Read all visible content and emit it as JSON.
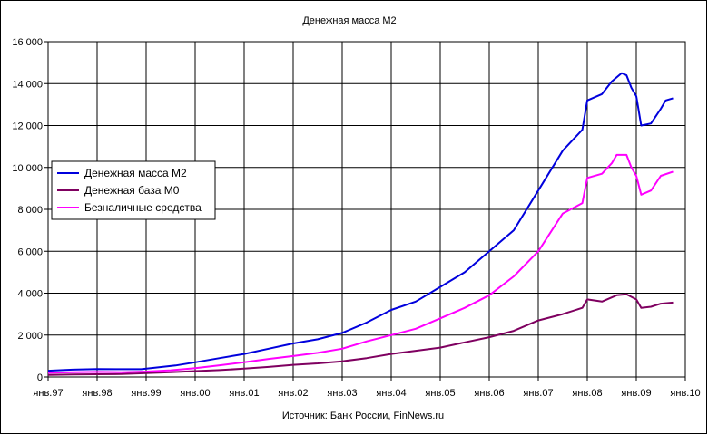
{
  "chart_data": {
    "type": "line",
    "title": "Денежная масса М2",
    "source": "Источник: Банк России, FinNews.ru",
    "xlabel": "",
    "ylabel": "",
    "x_ticks": [
      "янв.97",
      "янв.98",
      "янв.99",
      "янв.00",
      "янв.01",
      "янв.02",
      "янв.03",
      "янв.04",
      "янв.05",
      "янв.06",
      "янв.07",
      "янв.08",
      "янв.09",
      "янв.10"
    ],
    "xlim": [
      1997,
      2010
    ],
    "ylim": [
      0,
      16000
    ],
    "y_ticks": [
      "0",
      "2 000",
      "4 000",
      "6 000",
      "8 000",
      "10 000",
      "12 000",
      "14 000",
      "16 000"
    ],
    "y_tick_values": [
      0,
      2000,
      4000,
      6000,
      8000,
      10000,
      12000,
      14000,
      16000
    ],
    "grid": true,
    "legend_position": "left",
    "series": [
      {
        "name": "Денежная масса М2",
        "color": "#0000dd",
        "points": [
          [
            1997.0,
            300
          ],
          [
            1997.5,
            350
          ],
          [
            1998.0,
            380
          ],
          [
            1998.5,
            370
          ],
          [
            1998.9,
            370
          ],
          [
            1999.2,
            450
          ],
          [
            1999.6,
            550
          ],
          [
            2000.0,
            700
          ],
          [
            2000.5,
            900
          ],
          [
            2001.0,
            1100
          ],
          [
            2001.5,
            1350
          ],
          [
            2002.0,
            1600
          ],
          [
            2002.5,
            1800
          ],
          [
            2003.0,
            2100
          ],
          [
            2003.5,
            2600
          ],
          [
            2004.0,
            3200
          ],
          [
            2004.5,
            3600
          ],
          [
            2005.0,
            4300
          ],
          [
            2005.5,
            5000
          ],
          [
            2006.0,
            6000
          ],
          [
            2006.5,
            7000
          ],
          [
            2007.0,
            8900
          ],
          [
            2007.5,
            10800
          ],
          [
            2007.9,
            11800
          ],
          [
            2008.0,
            13200
          ],
          [
            2008.3,
            13500
          ],
          [
            2008.5,
            14100
          ],
          [
            2008.7,
            14500
          ],
          [
            2008.8,
            14400
          ],
          [
            2008.9,
            13800
          ],
          [
            2009.0,
            13400
          ],
          [
            2009.1,
            12000
          ],
          [
            2009.3,
            12100
          ],
          [
            2009.5,
            12800
          ],
          [
            2009.6,
            13200
          ],
          [
            2009.75,
            13300
          ]
        ]
      },
      {
        "name": "Денежная база М0",
        "color": "#7f0060",
        "points": [
          [
            1997.0,
            100
          ],
          [
            1997.5,
            120
          ],
          [
            1998.0,
            130
          ],
          [
            1998.5,
            140
          ],
          [
            1999.0,
            180
          ],
          [
            1999.5,
            230
          ],
          [
            2000.0,
            280
          ],
          [
            2000.5,
            330
          ],
          [
            2001.0,
            400
          ],
          [
            2001.5,
            480
          ],
          [
            2002.0,
            580
          ],
          [
            2002.5,
            650
          ],
          [
            2003.0,
            750
          ],
          [
            2003.5,
            900
          ],
          [
            2004.0,
            1100
          ],
          [
            2004.5,
            1250
          ],
          [
            2005.0,
            1400
          ],
          [
            2005.5,
            1650
          ],
          [
            2006.0,
            1900
          ],
          [
            2006.5,
            2200
          ],
          [
            2007.0,
            2700
          ],
          [
            2007.5,
            3000
          ],
          [
            2007.9,
            3300
          ],
          [
            2008.0,
            3700
          ],
          [
            2008.3,
            3600
          ],
          [
            2008.6,
            3900
          ],
          [
            2008.8,
            3950
          ],
          [
            2009.0,
            3700
          ],
          [
            2009.1,
            3300
          ],
          [
            2009.3,
            3350
          ],
          [
            2009.5,
            3500
          ],
          [
            2009.75,
            3550
          ]
        ]
      },
      {
        "name": "Безналичные средства",
        "color": "#ff00ff",
        "points": [
          [
            1997.0,
            200
          ],
          [
            1997.5,
            230
          ],
          [
            1998.0,
            240
          ],
          [
            1998.5,
            230
          ],
          [
            1999.0,
            260
          ],
          [
            1999.5,
            320
          ],
          [
            2000.0,
            420
          ],
          [
            2000.5,
            560
          ],
          [
            2001.0,
            700
          ],
          [
            2001.5,
            860
          ],
          [
            2002.0,
            1000
          ],
          [
            2002.5,
            1150
          ],
          [
            2003.0,
            1350
          ],
          [
            2003.5,
            1700
          ],
          [
            2004.0,
            2000
          ],
          [
            2004.5,
            2300
          ],
          [
            2005.0,
            2800
          ],
          [
            2005.5,
            3300
          ],
          [
            2006.0,
            3900
          ],
          [
            2006.5,
            4800
          ],
          [
            2007.0,
            6000
          ],
          [
            2007.5,
            7800
          ],
          [
            2007.9,
            8300
          ],
          [
            2008.0,
            9500
          ],
          [
            2008.3,
            9700
          ],
          [
            2008.5,
            10200
          ],
          [
            2008.6,
            10600
          ],
          [
            2008.8,
            10600
          ],
          [
            2008.9,
            10000
          ],
          [
            2009.0,
            9600
          ],
          [
            2009.1,
            8700
          ],
          [
            2009.3,
            8900
          ],
          [
            2009.5,
            9600
          ],
          [
            2009.75,
            9800
          ]
        ]
      }
    ]
  }
}
